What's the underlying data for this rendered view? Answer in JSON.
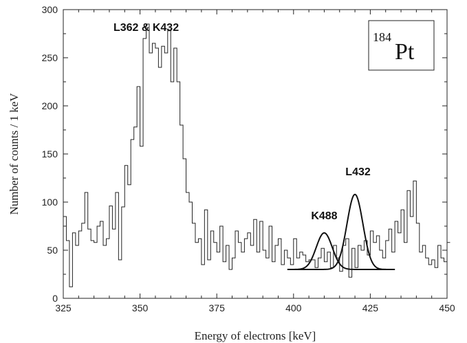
{
  "chart_data": {
    "type": "line",
    "xlabel": "Energy of electrons [keV]",
    "ylabel": "Number of counts / 1 keV",
    "xlim": [
      325,
      450
    ],
    "ylim": [
      0,
      300
    ],
    "xticks": [
      325,
      350,
      375,
      400,
      425,
      450
    ],
    "yticks": [
      0,
      50,
      100,
      150,
      200,
      250,
      300
    ],
    "isotope_mass": "184",
    "isotope_element": "Pt",
    "annotations": [
      {
        "text": "L362 & K432",
        "x": 352,
        "y": 278
      },
      {
        "text": "L432",
        "x": 421,
        "y": 128
      },
      {
        "text": "K488",
        "x": 410,
        "y": 82
      }
    ],
    "histogram": {
      "x_start": 325,
      "bin_width": 1,
      "values": [
        85,
        60,
        12,
        68,
        55,
        70,
        78,
        110,
        72,
        60,
        58,
        75,
        80,
        55,
        62,
        96,
        72,
        110,
        40,
        95,
        138,
        118,
        165,
        178,
        220,
        158,
        270,
        285,
        255,
        265,
        260,
        240,
        262,
        255,
        278,
        225,
        260,
        225,
        180,
        145,
        110,
        100,
        78,
        58,
        62,
        35,
        92,
        40,
        70,
        58,
        48,
        75,
        38,
        55,
        30,
        42,
        70,
        58,
        48,
        62,
        68,
        55,
        82,
        48,
        80,
        50,
        42,
        75,
        38,
        55,
        62,
        35,
        50,
        42,
        35,
        62,
        42,
        48,
        45,
        38,
        40,
        40,
        32,
        42,
        52,
        38,
        48,
        32,
        55,
        42,
        28,
        55,
        62,
        22,
        52,
        32,
        55,
        50,
        60,
        45,
        70,
        58,
        65,
        50,
        42,
        60,
        72,
        48,
        80,
        68,
        92,
        58,
        112,
        85,
        122,
        78,
        48,
        55,
        42,
        35,
        40,
        32,
        55,
        42,
        38,
        58
      ]
    },
    "series": [
      {
        "name": "K488",
        "baseline": 30,
        "center": 410,
        "amplitude": 38,
        "sigma": 2.6,
        "range": [
          398,
          433
        ]
      },
      {
        "name": "L432",
        "baseline": 30,
        "center": 420,
        "amplitude": 78,
        "sigma": 2.6,
        "range": [
          398,
          433
        ]
      }
    ],
    "grid": false
  }
}
